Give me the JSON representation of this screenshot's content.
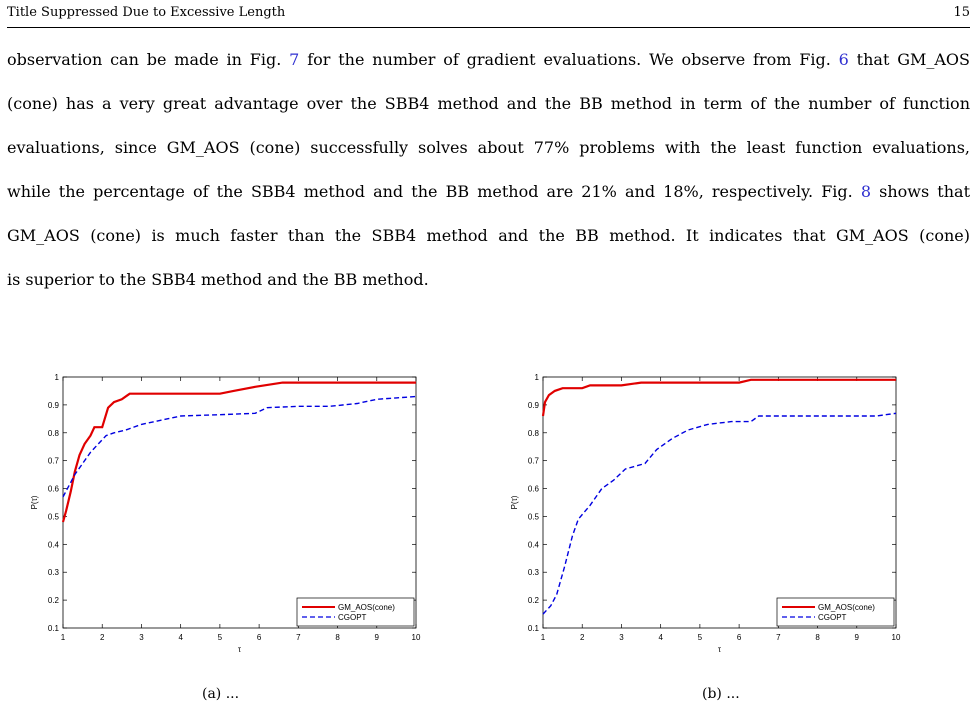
{
  "header": {
    "title": "Title Suppressed Due to Excessive Length",
    "page_number": "15"
  },
  "paragraph": {
    "l1_a": "observation can be made in Fig. ",
    "l1_ref1": "7",
    "l1_b": " for the number of gradient evaluations. We observe from Fig. ",
    "l1_ref2": "6",
    "l1_c": " that GM_AOS",
    "l2": "(cone) has a very great advantage over the SBB4 method and the BB method in term of the number of function",
    "l3": "evaluations, since GM_AOS (cone) successfully solves about 77% problems with the least function evaluations,",
    "l4_a": "while the percentage of the SBB4 method and the BB method are 21% and 18%, respectively. Fig. ",
    "l4_ref": "8",
    "l4_b": " shows that",
    "l5": "GM_AOS (cone) is much faster than the SBB4 method and the BB method. It indicates that GM_AOS (cone)",
    "l6": "is superior to the SBB4 method and the BB method."
  },
  "colors": {
    "gm_aos": "#e00000",
    "cgopt": "#0000e0",
    "link": "#2f2fd0"
  },
  "captions": {
    "left": "(a) ...",
    "right": "(b) ..."
  },
  "chart_data": [
    {
      "type": "line",
      "xlabel": "τ",
      "ylabel": "P(τ)",
      "xlim": [
        1,
        10
      ],
      "ylim": [
        0.1,
        1
      ],
      "xticks": [
        "1",
        "2",
        "3",
        "4",
        "5",
        "6",
        "7",
        "8",
        "9",
        "10"
      ],
      "yticks": [
        "0.1",
        "0.2",
        "0.3",
        "0.4",
        "0.5",
        "0.6",
        "0.7",
        "0.8",
        "0.9",
        "1"
      ],
      "legend_position": "bottom-right",
      "series": [
        {
          "name": "GM_AOS(cone)",
          "style": "solid",
          "color": "#e00000",
          "x": [
            1,
            1.08,
            1.2,
            1.3,
            1.42,
            1.55,
            1.7,
            1.8,
            2.0,
            2.15,
            2.3,
            2.5,
            2.7,
            3.0,
            4.0,
            5.0,
            5.35,
            5.9,
            6.6,
            7.5,
            10
          ],
          "y": [
            0.48,
            0.52,
            0.59,
            0.66,
            0.72,
            0.76,
            0.79,
            0.82,
            0.82,
            0.89,
            0.91,
            0.92,
            0.94,
            0.94,
            0.94,
            0.94,
            0.95,
            0.965,
            0.98,
            0.98,
            0.98
          ]
        },
        {
          "name": "CGOPT",
          "style": "dashed",
          "color": "#0000e0",
          "x": [
            1,
            1.15,
            1.3,
            1.5,
            1.7,
            1.9,
            2.1,
            2.3,
            2.6,
            3.0,
            3.5,
            4.0,
            5.0,
            5.9,
            6.2,
            7.0,
            7.8,
            8.5,
            9.0,
            9.5,
            10
          ],
          "y": [
            0.57,
            0.61,
            0.65,
            0.69,
            0.73,
            0.76,
            0.79,
            0.8,
            0.81,
            0.83,
            0.845,
            0.86,
            0.865,
            0.87,
            0.89,
            0.895,
            0.895,
            0.905,
            0.92,
            0.925,
            0.93
          ]
        }
      ]
    },
    {
      "type": "line",
      "xlabel": "τ",
      "ylabel": "P(τ)",
      "xlim": [
        1,
        10
      ],
      "ylim": [
        0.1,
        1
      ],
      "xticks": [
        "1",
        "2",
        "3",
        "4",
        "5",
        "6",
        "7",
        "8",
        "9",
        "10"
      ],
      "yticks": [
        "0.1",
        "0.2",
        "0.3",
        "0.4",
        "0.5",
        "0.6",
        "0.7",
        "0.8",
        "0.9",
        "1"
      ],
      "legend_position": "bottom-right",
      "series": [
        {
          "name": "GM_AOS(cone)",
          "style": "solid",
          "color": "#e00000",
          "x": [
            1,
            1.05,
            1.15,
            1.3,
            1.5,
            2.0,
            2.2,
            3.0,
            3.5,
            4.0,
            5.0,
            6.0,
            6.3,
            8.0,
            10
          ],
          "y": [
            0.86,
            0.91,
            0.935,
            0.95,
            0.96,
            0.96,
            0.97,
            0.97,
            0.98,
            0.98,
            0.98,
            0.98,
            0.99,
            0.99,
            0.99
          ]
        },
        {
          "name": "CGOPT",
          "style": "dashed",
          "color": "#0000e0",
          "x": [
            1,
            1.2,
            1.35,
            1.55,
            1.75,
            1.9,
            2.2,
            2.5,
            2.8,
            3.1,
            3.6,
            3.9,
            4.3,
            4.7,
            5.2,
            5.8,
            6.3,
            6.5,
            7.5,
            8.5,
            9.5,
            10
          ],
          "y": [
            0.15,
            0.18,
            0.22,
            0.32,
            0.43,
            0.49,
            0.54,
            0.6,
            0.63,
            0.67,
            0.69,
            0.74,
            0.78,
            0.81,
            0.83,
            0.84,
            0.84,
            0.86,
            0.86,
            0.86,
            0.86,
            0.87
          ]
        }
      ]
    }
  ]
}
